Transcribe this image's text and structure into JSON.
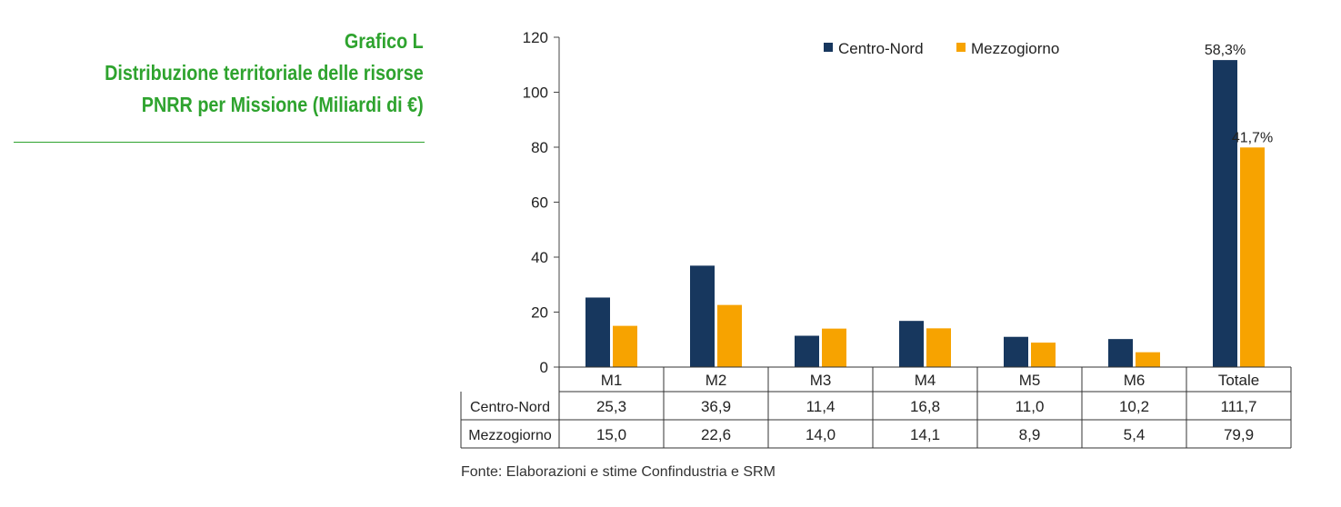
{
  "title": {
    "line1": "Grafico L",
    "line2": "Distribuzione territoriale delle risorse",
    "line3": "PNRR per Missione (Miliardi di €)"
  },
  "source": "Fonte: Elaborazioni e stime Confindustria e SRM",
  "chart_data": {
    "type": "bar",
    "categories": [
      "M1",
      "M2",
      "M3",
      "M4",
      "M5",
      "M6",
      "Totale"
    ],
    "series": [
      {
        "name": "Centro-Nord",
        "color": "#17375e",
        "values": [
          25.3,
          36.9,
          11.4,
          16.8,
          11.0,
          10.2,
          111.7
        ],
        "labels": [
          "25,3",
          "36,9",
          "11,4",
          "16,8",
          "11,0",
          "10,2",
          "111,7"
        ]
      },
      {
        "name": "Mezzogiorno",
        "color": "#f7a300",
        "values": [
          15.0,
          22.6,
          14.0,
          14.1,
          8.9,
          5.4,
          79.9
        ],
        "labels": [
          "15,0",
          "22,6",
          "14,0",
          "14,1",
          "8,9",
          "5,4",
          "79,9"
        ]
      }
    ],
    "annotations": [
      {
        "category": "Totale",
        "series": "Centro-Nord",
        "text": "58,3%"
      },
      {
        "category": "Totale",
        "series": "Mezzogiorno",
        "text": "41,7%"
      }
    ],
    "ylim": [
      0,
      120
    ],
    "yticks": [
      0,
      20,
      40,
      60,
      80,
      100,
      120
    ],
    "legend": "top",
    "grid": false,
    "data_table": true
  }
}
